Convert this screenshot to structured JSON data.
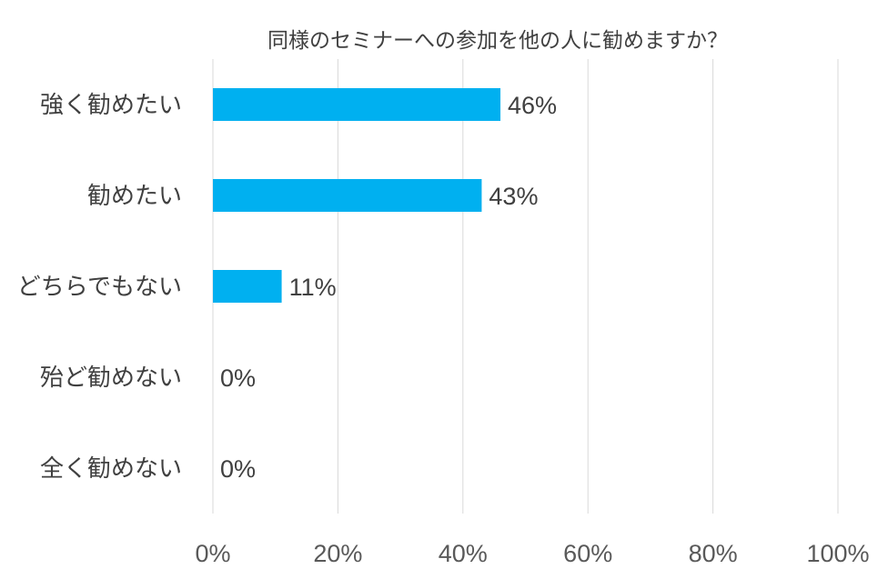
{
  "chart_data": {
    "type": "bar",
    "orientation": "horizontal",
    "title": "同様のセミナーへの参加を他の人に勧めますか？",
    "categories": [
      "強く勧めたい",
      "勧めたい",
      "どちらでもない",
      "殆ど勧めない",
      "全く勧めない"
    ],
    "values": [
      46,
      43,
      11,
      0,
      0
    ],
    "data_labels": [
      "46%",
      "43%",
      "11%",
      "0%",
      "0%"
    ],
    "xlim": [
      0,
      100
    ],
    "x_ticks": [
      0,
      20,
      40,
      60,
      80,
      100
    ],
    "x_tick_labels": [
      "0%",
      "20%",
      "40%",
      "60%",
      "80%",
      "100%"
    ],
    "xlabel": "",
    "ylabel": "",
    "grid": true,
    "legend": "none",
    "bar_color": "#00b0f0"
  }
}
